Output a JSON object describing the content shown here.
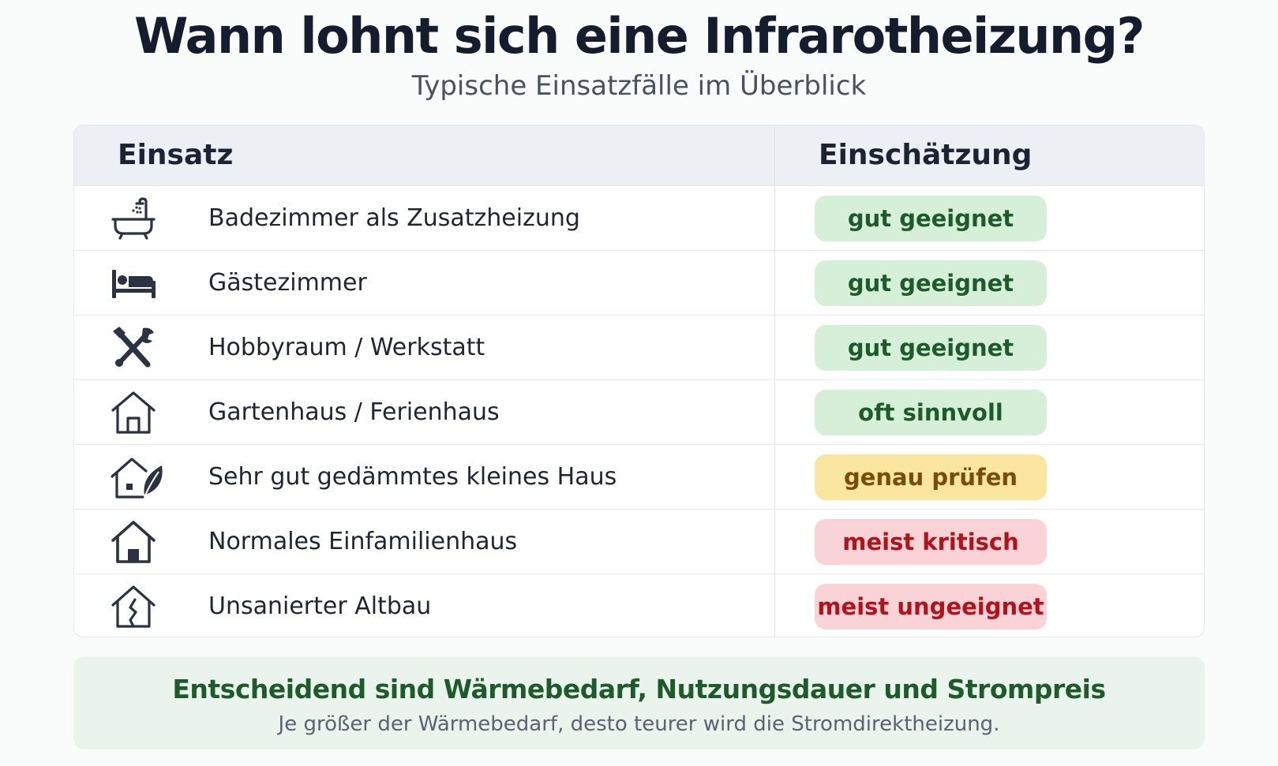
{
  "header": {
    "title": "Wann lohnt sich eine Infrarotheizung?",
    "subtitle": "Typische Einsatzfälle im Überblick"
  },
  "table": {
    "columns": [
      "Einsatz",
      "Einschätzung"
    ],
    "rows": [
      {
        "icon": "bathtub-icon",
        "label": "Badezimmer als Zusatzheizung",
        "rating": "gut geeignet",
        "status": "green"
      },
      {
        "icon": "bed-icon",
        "label": "Gästezimmer",
        "rating": "gut geeignet",
        "status": "green"
      },
      {
        "icon": "tools-icon",
        "label": "Hobbyraum / Werkstatt",
        "rating": "gut geeignet",
        "status": "green"
      },
      {
        "icon": "house-outline-icon",
        "label": "Gartenhaus / Ferienhaus",
        "rating": "oft sinnvoll",
        "status": "green"
      },
      {
        "icon": "house-leaf-icon",
        "label": "Sehr gut gedämmtes kleines Haus",
        "rating": "genau prüfen",
        "status": "yellow"
      },
      {
        "icon": "house-icon",
        "label": "Normales Einfamilienhaus",
        "rating": "meist kritisch",
        "status": "red"
      },
      {
        "icon": "cracked-house-icon",
        "label": "Unsanierter Altbau",
        "rating": "meist ungeeignet",
        "status": "red"
      }
    ]
  },
  "footer": {
    "title": "Entscheidend sind Wärmebedarf, Nutzungsdauer und Strompreis",
    "text": "Je größer der Wärmebedarf, desto teurer wird die Stromdirektheizung."
  },
  "colors": {
    "green_bg": "#d6efd9",
    "green_text": "#1d5c2a",
    "yellow_bg": "#fbe6a0",
    "yellow_text": "#7a4c0a",
    "red_bg": "#fad3d6",
    "red_text": "#b3121b",
    "footer_bg": "#eaf3ec"
  }
}
